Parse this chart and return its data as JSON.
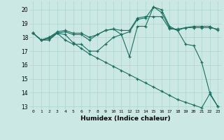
{
  "title": "",
  "xlabel": "Humidex (Indice chaleur)",
  "bg_color": "#cce8e4",
  "grid_color": "#b0d8d0",
  "line_color": "#1a6e60",
  "xlim": [
    -0.5,
    23.5
  ],
  "ylim": [
    12.8,
    20.6
  ],
  "yticks": [
    13,
    14,
    15,
    16,
    17,
    18,
    19,
    20
  ],
  "xticks": [
    0,
    1,
    2,
    3,
    4,
    5,
    6,
    7,
    8,
    9,
    10,
    11,
    12,
    13,
    14,
    15,
    16,
    17,
    18,
    19,
    20,
    21,
    22,
    23
  ],
  "series": [
    {
      "x": [
        0,
        1,
        2,
        3,
        4,
        5,
        6,
        7,
        8,
        9,
        10,
        11,
        12,
        13,
        14,
        15,
        16,
        17,
        18,
        19,
        20,
        21,
        22,
        23
      ],
      "y": [
        18.3,
        17.8,
        17.8,
        18.3,
        18.2,
        17.6,
        17.2,
        16.8,
        16.5,
        16.2,
        15.9,
        15.6,
        15.3,
        15.0,
        14.7,
        14.4,
        14.1,
        13.8,
        13.5,
        13.3,
        13.1,
        12.9,
        13.9,
        13.0
      ]
    },
    {
      "x": [
        0,
        1,
        2,
        3,
        4,
        5,
        6,
        7,
        8,
        9,
        10,
        11,
        12,
        13,
        14,
        15,
        16,
        17,
        18,
        19,
        20,
        21,
        22,
        23
      ],
      "y": [
        18.3,
        17.8,
        17.9,
        18.3,
        17.8,
        17.5,
        17.5,
        17.0,
        17.0,
        17.5,
        18.0,
        18.2,
        16.6,
        18.8,
        18.8,
        20.2,
        19.8,
        18.7,
        18.5,
        17.5,
        17.4,
        16.2,
        14.0,
        13.0
      ]
    },
    {
      "x": [
        0,
        1,
        2,
        3,
        4,
        5,
        6,
        7,
        8,
        9,
        10,
        11,
        12,
        13,
        14,
        15,
        16,
        17,
        18,
        19,
        20,
        21,
        22,
        23
      ],
      "y": [
        18.3,
        17.8,
        18.0,
        18.3,
        18.4,
        18.2,
        18.2,
        17.8,
        18.2,
        18.5,
        18.6,
        18.2,
        18.4,
        19.3,
        19.4,
        20.2,
        20.0,
        18.8,
        18.5,
        18.7,
        18.8,
        18.8,
        18.8,
        18.5
      ]
    },
    {
      "x": [
        0,
        1,
        2,
        3,
        4,
        5,
        6,
        7,
        8,
        9,
        10,
        11,
        12,
        13,
        14,
        15,
        16,
        17,
        18,
        19,
        20,
        21,
        22,
        23
      ],
      "y": [
        18.3,
        17.8,
        18.0,
        18.4,
        18.5,
        18.3,
        18.3,
        18.0,
        18.2,
        18.5,
        18.6,
        18.5,
        18.5,
        19.4,
        19.5,
        19.5,
        19.5,
        18.6,
        18.6,
        18.7,
        18.7,
        18.7,
        18.7,
        18.6
      ]
    }
  ]
}
